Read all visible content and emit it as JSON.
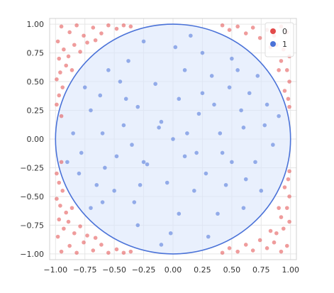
{
  "chart_data": {
    "type": "scatter",
    "title": "",
    "xlabel": "",
    "ylabel": "",
    "xlim": [
      -1.05,
      1.05
    ],
    "ylim": [
      -1.05,
      1.05
    ],
    "xticks": [
      -1.0,
      -0.75,
      -0.5,
      -0.25,
      0.0,
      0.25,
      0.5,
      0.75,
      1.0
    ],
    "yticks": [
      -1.0,
      -0.75,
      -0.5,
      -0.25,
      0.0,
      0.25,
      0.5,
      0.75,
      1.0
    ],
    "xtick_labels": [
      "−1.00",
      "−0.75",
      "−0.50",
      "−0.25",
      "0.00",
      "0.25",
      "0.50",
      "0.75",
      "1.00"
    ],
    "ytick_labels": [
      "−1.00",
      "−0.75",
      "−0.50",
      "−0.25",
      "0.00",
      "0.25",
      "0.50",
      "0.75",
      "1.00"
    ],
    "grid": true,
    "legend_position": "top-right",
    "series": [
      {
        "name": "0",
        "color": "#e24a4a",
        "points": [
          [
            -0.95,
            0.98
          ],
          [
            -0.88,
            0.93
          ],
          [
            -0.82,
            0.99
          ],
          [
            -0.76,
            0.9
          ],
          [
            -0.68,
            0.97
          ],
          [
            -0.61,
            0.92
          ],
          [
            -0.55,
            0.99
          ],
          [
            -0.48,
            0.96
          ],
          [
            -0.42,
            0.99
          ],
          [
            -0.36,
            0.98
          ],
          [
            -0.98,
            0.85
          ],
          [
            -0.93,
            0.78
          ],
          [
            -0.97,
            0.7
          ],
          [
            -0.89,
            0.72
          ],
          [
            -0.84,
            0.82
          ],
          [
            -0.79,
            0.76
          ],
          [
            -0.73,
            0.84
          ],
          [
            -0.66,
            0.86
          ],
          [
            -0.91,
            0.64
          ],
          [
            -0.96,
            0.58
          ],
          [
            -0.99,
            0.52
          ],
          [
            -0.86,
            0.6
          ],
          [
            -0.94,
            0.45
          ],
          [
            -0.97,
            0.38
          ],
          [
            -0.99,
            0.3
          ],
          [
            -0.95,
            0.2
          ],
          [
            0.42,
            0.99
          ],
          [
            0.48,
            0.95
          ],
          [
            0.55,
            0.98
          ],
          [
            0.62,
            0.92
          ],
          [
            0.68,
            0.97
          ],
          [
            0.74,
            0.88
          ],
          [
            0.8,
            0.95
          ],
          [
            0.86,
            0.9
          ],
          [
            0.92,
            0.98
          ],
          [
            0.97,
            0.93
          ],
          [
            0.88,
            0.82
          ],
          [
            0.94,
            0.78
          ],
          [
            0.99,
            0.72
          ],
          [
            0.83,
            0.8
          ],
          [
            0.92,
            0.68
          ],
          [
            0.97,
            0.6
          ],
          [
            0.99,
            0.5
          ],
          [
            0.95,
            0.42
          ],
          [
            0.98,
            0.35
          ],
          [
            0.99,
            0.28
          ],
          [
            0.9,
            0.6
          ],
          [
            -0.95,
            -0.98
          ],
          [
            -0.88,
            -0.93
          ],
          [
            -0.82,
            -0.99
          ],
          [
            -0.76,
            -0.9
          ],
          [
            -0.68,
            -0.97
          ],
          [
            -0.61,
            -0.92
          ],
          [
            -0.55,
            -0.99
          ],
          [
            -0.48,
            -0.96
          ],
          [
            -0.42,
            -0.99
          ],
          [
            -0.36,
            -0.98
          ],
          [
            -0.98,
            -0.85
          ],
          [
            -0.93,
            -0.78
          ],
          [
            -0.97,
            -0.7
          ],
          [
            -0.89,
            -0.72
          ],
          [
            -0.84,
            -0.82
          ],
          [
            -0.79,
            -0.76
          ],
          [
            -0.73,
            -0.84
          ],
          [
            -0.66,
            -0.86
          ],
          [
            -0.91,
            -0.64
          ],
          [
            -0.96,
            -0.58
          ],
          [
            -0.99,
            -0.52
          ],
          [
            -0.86,
            -0.6
          ],
          [
            -0.94,
            -0.45
          ],
          [
            -0.97,
            -0.38
          ],
          [
            -0.99,
            -0.3
          ],
          [
            -0.95,
            -0.2
          ],
          [
            0.42,
            -0.99
          ],
          [
            0.48,
            -0.95
          ],
          [
            0.55,
            -0.98
          ],
          [
            0.62,
            -0.92
          ],
          [
            0.68,
            -0.97
          ],
          [
            0.74,
            -0.88
          ],
          [
            0.8,
            -0.95
          ],
          [
            0.86,
            -0.9
          ],
          [
            0.92,
            -0.98
          ],
          [
            0.97,
            -0.93
          ],
          [
            0.88,
            -0.82
          ],
          [
            0.94,
            -0.78
          ],
          [
            0.99,
            -0.72
          ],
          [
            0.83,
            -0.8
          ],
          [
            0.92,
            -0.68
          ],
          [
            0.97,
            -0.6
          ],
          [
            0.99,
            -0.5
          ],
          [
            0.95,
            -0.42
          ],
          [
            0.98,
            -0.35
          ],
          [
            0.99,
            -0.28
          ],
          [
            0.9,
            -0.6
          ]
        ]
      },
      {
        "name": "1",
        "color": "#4a72d8",
        "points": [
          [
            0.0,
            0.0
          ],
          [
            0.12,
            0.05
          ],
          [
            -0.1,
            0.15
          ],
          [
            0.2,
            -0.12
          ],
          [
            -0.25,
            -0.2
          ],
          [
            0.35,
            0.3
          ],
          [
            -0.4,
            0.35
          ],
          [
            0.45,
            -0.4
          ],
          [
            -0.5,
            -0.45
          ],
          [
            0.6,
            0.1
          ],
          [
            -0.6,
            0.05
          ],
          [
            0.1,
            0.6
          ],
          [
            0.05,
            -0.65
          ],
          [
            0.7,
            -0.2
          ],
          [
            -0.7,
            0.25
          ],
          [
            0.25,
            0.75
          ],
          [
            -0.3,
            -0.75
          ],
          [
            0.55,
            0.6
          ],
          [
            -0.55,
            0.6
          ],
          [
            0.6,
            -0.6
          ],
          [
            -0.6,
            -0.55
          ],
          [
            0.8,
            0.3
          ],
          [
            -0.8,
            -0.3
          ],
          [
            0.3,
            -0.85
          ],
          [
            -0.25,
            0.85
          ],
          [
            0.85,
            -0.05
          ],
          [
            -0.85,
            0.05
          ],
          [
            0.15,
            0.9
          ],
          [
            -0.1,
            -0.92
          ],
          [
            0.4,
            0.05
          ],
          [
            -0.35,
            -0.05
          ],
          [
            0.05,
            0.35
          ],
          [
            -0.05,
            -0.38
          ],
          [
            0.22,
            0.22
          ],
          [
            -0.22,
            -0.22
          ],
          [
            0.28,
            -0.3
          ],
          [
            -0.3,
            0.28
          ],
          [
            0.48,
            0.45
          ],
          [
            -0.45,
            0.5
          ],
          [
            0.5,
            -0.2
          ],
          [
            -0.48,
            -0.15
          ],
          [
            0.65,
            0.4
          ],
          [
            -0.65,
            -0.4
          ],
          [
            0.38,
            -0.65
          ],
          [
            -0.38,
            0.68
          ],
          [
            0.72,
            0.55
          ],
          [
            -0.7,
            -0.6
          ],
          [
            0.18,
            -0.45
          ],
          [
            -0.15,
            0.48
          ],
          [
            0.9,
            0.2
          ],
          [
            -0.9,
            -0.2
          ],
          [
            0.75,
            -0.45
          ],
          [
            -0.75,
            0.45
          ],
          [
            0.02,
            0.8
          ],
          [
            -0.02,
            -0.82
          ],
          [
            0.58,
            0.25
          ],
          [
            -0.58,
            -0.25
          ],
          [
            0.33,
            0.55
          ],
          [
            -0.33,
            -0.55
          ],
          [
            0.1,
            -0.15
          ],
          [
            -0.12,
            0.1
          ],
          [
            0.42,
            -0.12
          ],
          [
            -0.42,
            0.12
          ],
          [
            0.62,
            -0.35
          ],
          [
            -0.62,
            0.38
          ],
          [
            0.78,
            0.12
          ],
          [
            -0.78,
            -0.12
          ],
          [
            0.25,
            0.4
          ],
          [
            -0.28,
            -0.4
          ],
          [
            0.5,
            0.7
          ]
        ]
      }
    ],
    "overlays": [
      {
        "shape": "circle",
        "center": [
          0,
          0
        ],
        "radius": 1.0,
        "fill": "#dbe6fb",
        "stroke": "#4a72d8"
      }
    ]
  },
  "legend": {
    "items": [
      {
        "label": "0",
        "color": "#e24a4a"
      },
      {
        "label": "1",
        "color": "#4a72d8"
      }
    ]
  }
}
